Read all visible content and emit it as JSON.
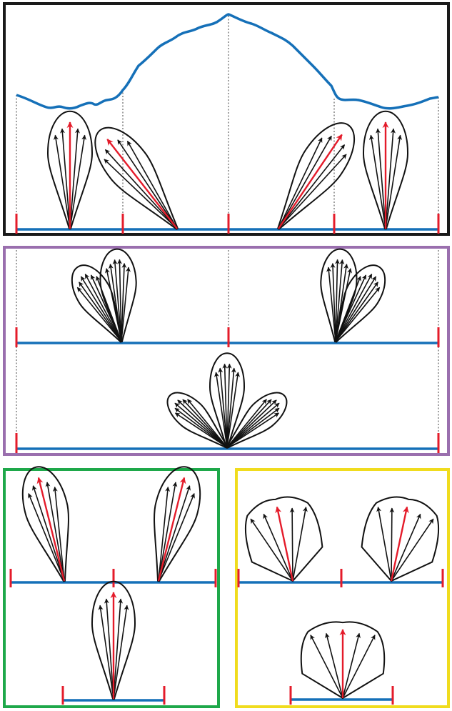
{
  "colors": {
    "background": "#ffffff",
    "panel_tuning": "#1a1a1a",
    "panel_pooling": "#9a6fae",
    "panel_narrow": "#1ea84a",
    "panel_broad": "#f0dc1e",
    "tuning_curve": "#1570b8",
    "baseline": "#1570b8",
    "tick_marks": "#e41b2a",
    "mean_arrow": "#e41b2a",
    "component_arrows": "#111111",
    "lobe_outline": "#111111",
    "guide_lines": "#888888"
  },
  "figure": {
    "panels": [
      {
        "id": "tuning-panel",
        "border": "panel_tuning",
        "lobes": 4,
        "shows_tuning_curve": true
      },
      {
        "id": "pooling-panel",
        "border": "panel_pooling",
        "lobe_groups": 3
      },
      {
        "id": "narrow-lobe-panel",
        "border": "panel_narrow",
        "lobes": 3
      },
      {
        "id": "broad-lobe-panel",
        "border": "panel_broad",
        "lobes": 3
      }
    ],
    "text_labels": []
  }
}
